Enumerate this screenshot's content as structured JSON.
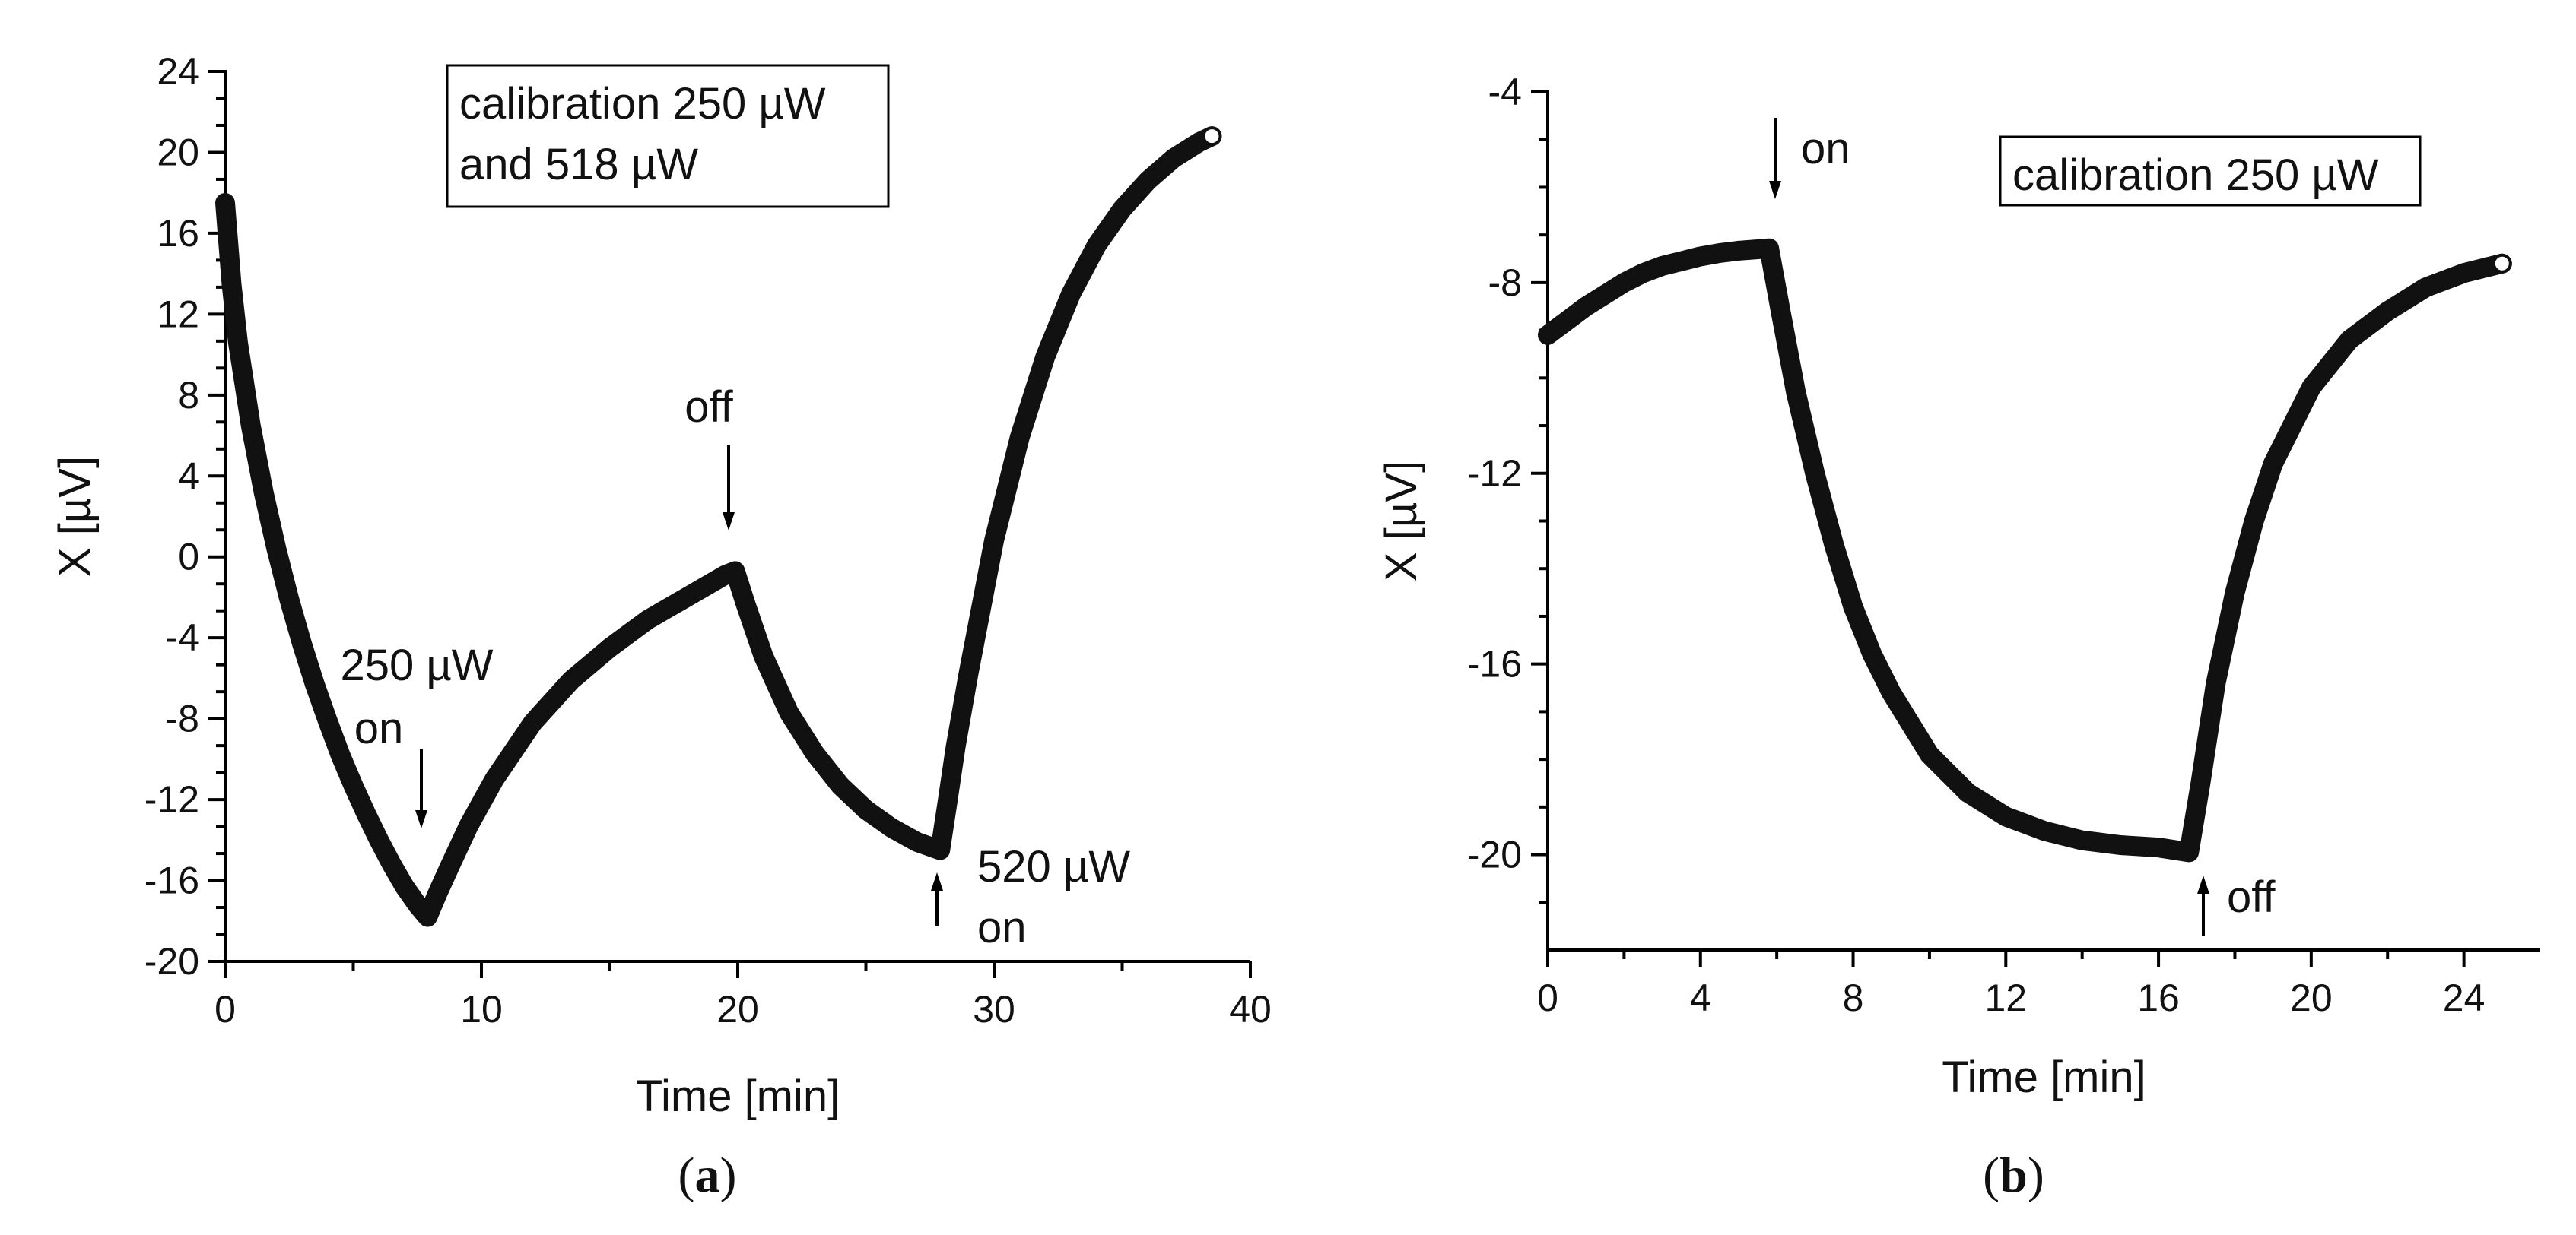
{
  "chart_data": [
    {
      "type": "line",
      "panel_label": "(a)",
      "title": "",
      "xlabel": "Time [min]",
      "ylabel": "X [µV]",
      "xlim": [
        0,
        40
      ],
      "ylim": [
        -20,
        24
      ],
      "xticks": [
        0,
        10,
        20,
        30,
        40
      ],
      "yticks": [
        24,
        20,
        16,
        12,
        8,
        4,
        0,
        -4,
        -8,
        -12,
        -16,
        -20
      ],
      "legend_lines": [
        "calibration 250 µW",
        "and 518 µW"
      ],
      "series": [
        {
          "name": "X",
          "x": [
            0,
            0.25,
            0.5,
            1,
            1.5,
            2,
            2.5,
            3,
            3.5,
            4,
            4.5,
            5,
            5.5,
            6,
            6.5,
            7,
            7.5,
            7.9,
            8.3,
            8.8,
            9.5,
            10.5,
            12,
            13.5,
            15,
            16.5,
            18,
            19.5,
            19.9,
            20.3,
            21,
            22,
            23,
            24,
            25,
            26,
            27,
            27.9,
            28.2,
            28.5,
            29,
            30,
            31,
            32,
            33,
            34,
            35,
            36,
            37,
            38,
            38.5
          ],
          "y": [
            17.5,
            13.5,
            10.6,
            6.5,
            3.2,
            0.4,
            -2.1,
            -4.3,
            -6.3,
            -8.1,
            -9.8,
            -11.3,
            -12.7,
            -14.0,
            -15.2,
            -16.3,
            -17.2,
            -17.8,
            -16.6,
            -15.2,
            -13.3,
            -11.0,
            -8.2,
            -6.1,
            -4.5,
            -3.1,
            -2.0,
            -0.9,
            -0.7,
            -2.3,
            -4.9,
            -7.7,
            -9.7,
            -11.3,
            -12.5,
            -13.4,
            -14.1,
            -14.5,
            -12.0,
            -9.4,
            -5.8,
            0.8,
            5.9,
            9.9,
            13.0,
            15.4,
            17.2,
            18.6,
            19.7,
            20.5,
            20.8
          ]
        }
      ],
      "annotations": [
        {
          "lines": [
            "250 µW",
            "on"
          ],
          "x": 7.7,
          "y": -17.5,
          "direction": "down"
        },
        {
          "lines": [
            "off"
          ],
          "x": 19.8,
          "y": -0.9,
          "direction": "down"
        },
        {
          "lines": [
            "520 µW",
            "on"
          ],
          "x": 27.9,
          "y": -15.2,
          "direction": "up"
        }
      ]
    },
    {
      "type": "line",
      "panel_label": "(b)",
      "title": "",
      "xlabel": "Time [min]",
      "ylabel": "X [µV]",
      "xlim": [
        0,
        26
      ],
      "ylim": [
        -22,
        -4
      ],
      "xticks": [
        0,
        4,
        8,
        12,
        16,
        20,
        24
      ],
      "yticks": [
        -4,
        -8,
        -12,
        -16,
        -20
      ],
      "legend_lines": [
        "calibration 250 µW"
      ],
      "series": [
        {
          "name": "X",
          "x": [
            0,
            0.5,
            1,
            1.5,
            2,
            2.5,
            3,
            3.5,
            4,
            4.5,
            5,
            5.5,
            5.8,
            6.1,
            6.5,
            7,
            7.5,
            8,
            8.5,
            9,
            10,
            11,
            12,
            13,
            14,
            15,
            16,
            16.8,
            17.1,
            17.5,
            18,
            18.5,
            19,
            20,
            21,
            22,
            23,
            24,
            25
          ],
          "y": [
            -9.1,
            -8.8,
            -8.5,
            -8.25,
            -8.0,
            -7.8,
            -7.65,
            -7.55,
            -7.45,
            -7.38,
            -7.33,
            -7.3,
            -7.28,
            -8.6,
            -10.3,
            -12.0,
            -13.5,
            -14.8,
            -15.8,
            -16.6,
            -17.9,
            -18.7,
            -19.2,
            -19.5,
            -19.7,
            -19.8,
            -19.85,
            -19.95,
            -18.5,
            -16.4,
            -14.5,
            -13.0,
            -11.8,
            -10.2,
            -9.2,
            -8.6,
            -8.1,
            -7.8,
            -7.6
          ]
        }
      ],
      "annotations": [
        {
          "lines": [
            "on"
          ],
          "x": 5.8,
          "y": -7.0,
          "direction": "down"
        },
        {
          "lines": [
            "off"
          ],
          "x": 16.8,
          "y": -20.5,
          "direction": "up"
        }
      ]
    }
  ]
}
